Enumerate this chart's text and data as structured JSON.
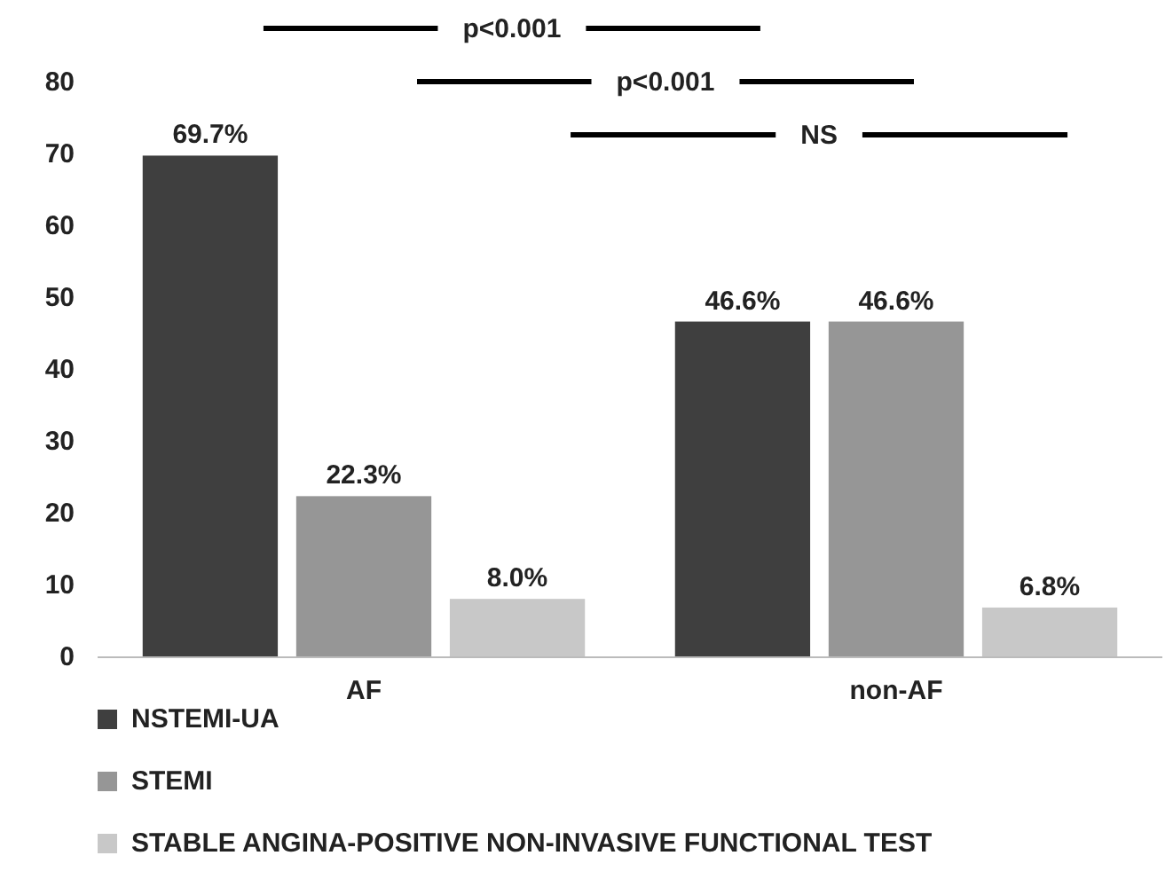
{
  "chart_data": {
    "type": "bar",
    "categories": [
      "AF",
      "non-AF"
    ],
    "series": [
      {
        "name": "NSTEMI-UA",
        "color": "#3f3f3f",
        "values": [
          69.7,
          46.6
        ],
        "value_labels": [
          "69.7%",
          "46.6%"
        ]
      },
      {
        "name": "STEMI",
        "color": "#969696",
        "values": [
          22.3,
          46.6
        ],
        "value_labels": [
          "22.3%",
          "46.6%"
        ]
      },
      {
        "name": "STABLE ANGINA-POSITIVE NON-INVASIVE FUNCTIONAL TEST",
        "color": "#c8c8c8",
        "values": [
          8.0,
          6.8
        ],
        "value_labels": [
          "8.0%",
          "6.8%"
        ]
      }
    ],
    "ylim": [
      0,
      80
    ],
    "yticks": [
      0,
      10,
      20,
      30,
      40,
      50,
      60,
      70,
      80
    ],
    "grid": false,
    "legend": "bottom",
    "annotations": [
      "p<0.001",
      "p<0.001",
      "NS"
    ]
  }
}
